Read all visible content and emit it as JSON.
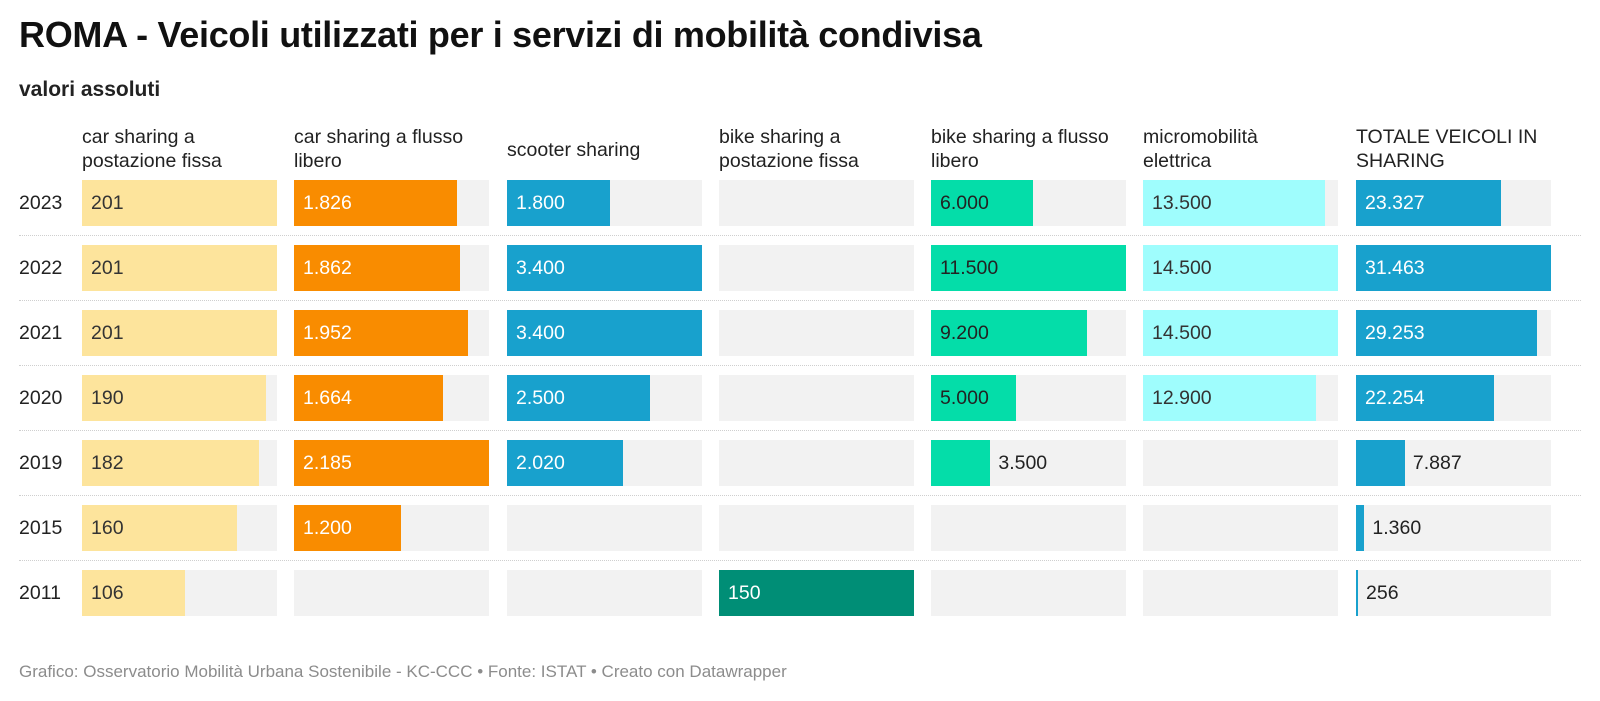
{
  "title": "ROMA - Veicoli utilizzati per i servizi di mobilità condivisa",
  "subtitle": "valori assoluti",
  "footer": "Grafico: Osservatorio Mobilità Urbana Sostenibile - KC-CCC • Fonte: ISTAT • Creato con Datawrapper",
  "chart_data": {
    "type": "bar",
    "categories": [
      "2023",
      "2022",
      "2021",
      "2020",
      "2019",
      "2015",
      "2011"
    ],
    "series": [
      {
        "name": "car sharing a postazione fissa",
        "name_lines": [
          "car sharing a",
          "postazione fissa"
        ],
        "color": "#fde49c",
        "text_color": "#333333",
        "values": [
          201,
          201,
          201,
          190,
          182,
          160,
          106
        ],
        "labels": [
          "201",
          "201",
          "201",
          "190",
          "182",
          "160",
          "106"
        ]
      },
      {
        "name": "car sharing a flusso libero",
        "name_lines": [
          "car sharing a flusso",
          "libero"
        ],
        "color": "#f98c00",
        "text_color": "#ffffff",
        "values": [
          1826,
          1862,
          1952,
          1664,
          2185,
          1200,
          null
        ],
        "labels": [
          "1.826",
          "1.862",
          "1.952",
          "1.664",
          "2.185",
          "1.200",
          ""
        ]
      },
      {
        "name": "scooter sharing",
        "name_lines": [
          "scooter sharing"
        ],
        "color": "#18a1cd",
        "text_color": "#ffffff",
        "values": [
          1800,
          3400,
          3400,
          2500,
          2020,
          null,
          null
        ],
        "labels": [
          "1.800",
          "3.400",
          "3.400",
          "2.500",
          "2.020",
          "",
          ""
        ]
      },
      {
        "name": "bike sharing a postazione fissa",
        "name_lines": [
          "bike sharing a",
          "postazione fissa"
        ],
        "color": "#008e76",
        "text_color": "#ffffff",
        "values": [
          null,
          null,
          null,
          null,
          null,
          null,
          150
        ],
        "labels": [
          "",
          "",
          "",
          "",
          "",
          "",
          "150"
        ]
      },
      {
        "name": "bike sharing a flusso libero",
        "name_lines": [
          "bike sharing a flusso",
          "libero"
        ],
        "color": "#04dda9",
        "text_color": "#222222",
        "values": [
          6000,
          11500,
          9200,
          5000,
          3500,
          null,
          null
        ],
        "labels": [
          "6.000",
          "11.500",
          "9.200",
          "5.000",
          "3.500",
          "",
          ""
        ]
      },
      {
        "name": "micromobilità elettrica",
        "name_lines": [
          "micromobilità",
          "elettrica"
        ],
        "color": "#9ffdfd",
        "text_color": "#333333",
        "values": [
          13500,
          14500,
          14500,
          12900,
          null,
          null,
          null
        ],
        "labels": [
          "13.500",
          "14.500",
          "14.500",
          "12.900",
          "",
          "",
          ""
        ]
      },
      {
        "name": "TOTALE VEICOLI IN SHARING",
        "name_lines": [
          "TOTALE VEICOLI IN",
          "SHARING"
        ],
        "color": "#18a1cd",
        "text_color": "#ffffff",
        "values": [
          23327,
          31463,
          29253,
          22254,
          7887,
          1360,
          256
        ],
        "labels": [
          "23.327",
          "31.463",
          "29.253",
          "22.254",
          "7.887",
          "1.360",
          "256"
        ]
      }
    ]
  }
}
